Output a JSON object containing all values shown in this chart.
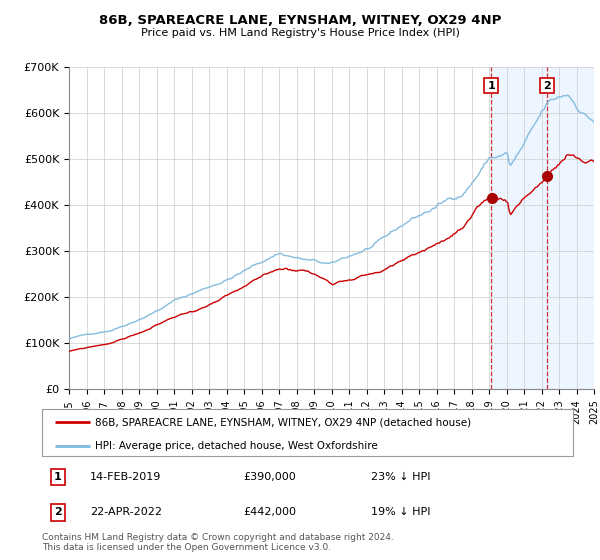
{
  "title": "86B, SPAREACRE LANE, EYNSHAM, WITNEY, OX29 4NP",
  "subtitle": "Price paid vs. HM Land Registry's House Price Index (HPI)",
  "legend_property": "86B, SPAREACRE LANE, EYNSHAM, WITNEY, OX29 4NP (detached house)",
  "legend_hpi": "HPI: Average price, detached house, West Oxfordshire",
  "annotation1_date": "14-FEB-2019",
  "annotation1_price": "£390,000",
  "annotation1_hpi": "23% ↓ HPI",
  "annotation2_date": "22-APR-2022",
  "annotation2_price": "£442,000",
  "annotation2_hpi": "19% ↓ HPI",
  "footer1": "Contains HM Land Registry data © Crown copyright and database right 2024.",
  "footer2": "This data is licensed under the Open Government Licence v3.0.",
  "sale1_year": 2019.12,
  "sale1_value": 390000,
  "sale2_year": 2022.31,
  "sale2_value": 442000,
  "hpi_color": "#7fb9dd",
  "property_color": "#cc0000",
  "shade_color": "#ddeeff",
  "xmin": 1995,
  "xmax": 2025,
  "ymin": 0,
  "ymax": 700000,
  "yticks": [
    0,
    100000,
    200000,
    300000,
    400000,
    500000,
    600000,
    700000
  ],
  "ytick_labels": [
    "£0",
    "£100K",
    "£200K",
    "£300K",
    "£400K",
    "£500K",
    "£600K",
    "£700K"
  ],
  "grid_color": "#cccccc",
  "bg_color": "#ffffff"
}
